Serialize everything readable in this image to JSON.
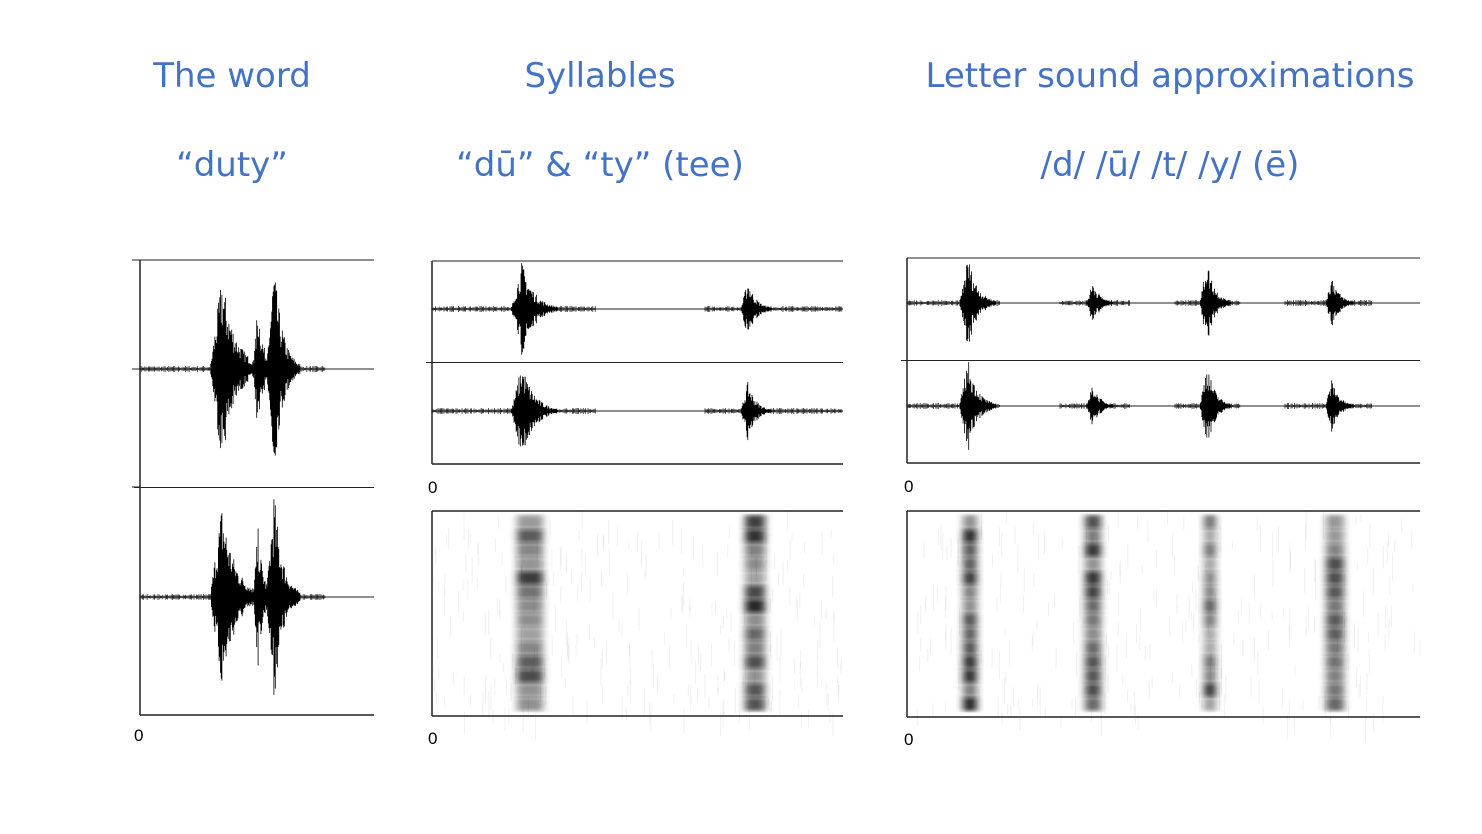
{
  "columns": [
    {
      "title": "The word",
      "subtitle": "“duty”",
      "axis_labels": [
        "0"
      ]
    },
    {
      "title": "Syllables",
      "subtitle": "“dū” & “ty” (tee)",
      "axis_labels": [
        "0",
        "0"
      ]
    },
    {
      "title": "Letter sound approximations",
      "subtitle": "/d/  /ū/  /t/  /y/  (ē)",
      "axis_labels": [
        "0",
        "0"
      ]
    }
  ]
}
